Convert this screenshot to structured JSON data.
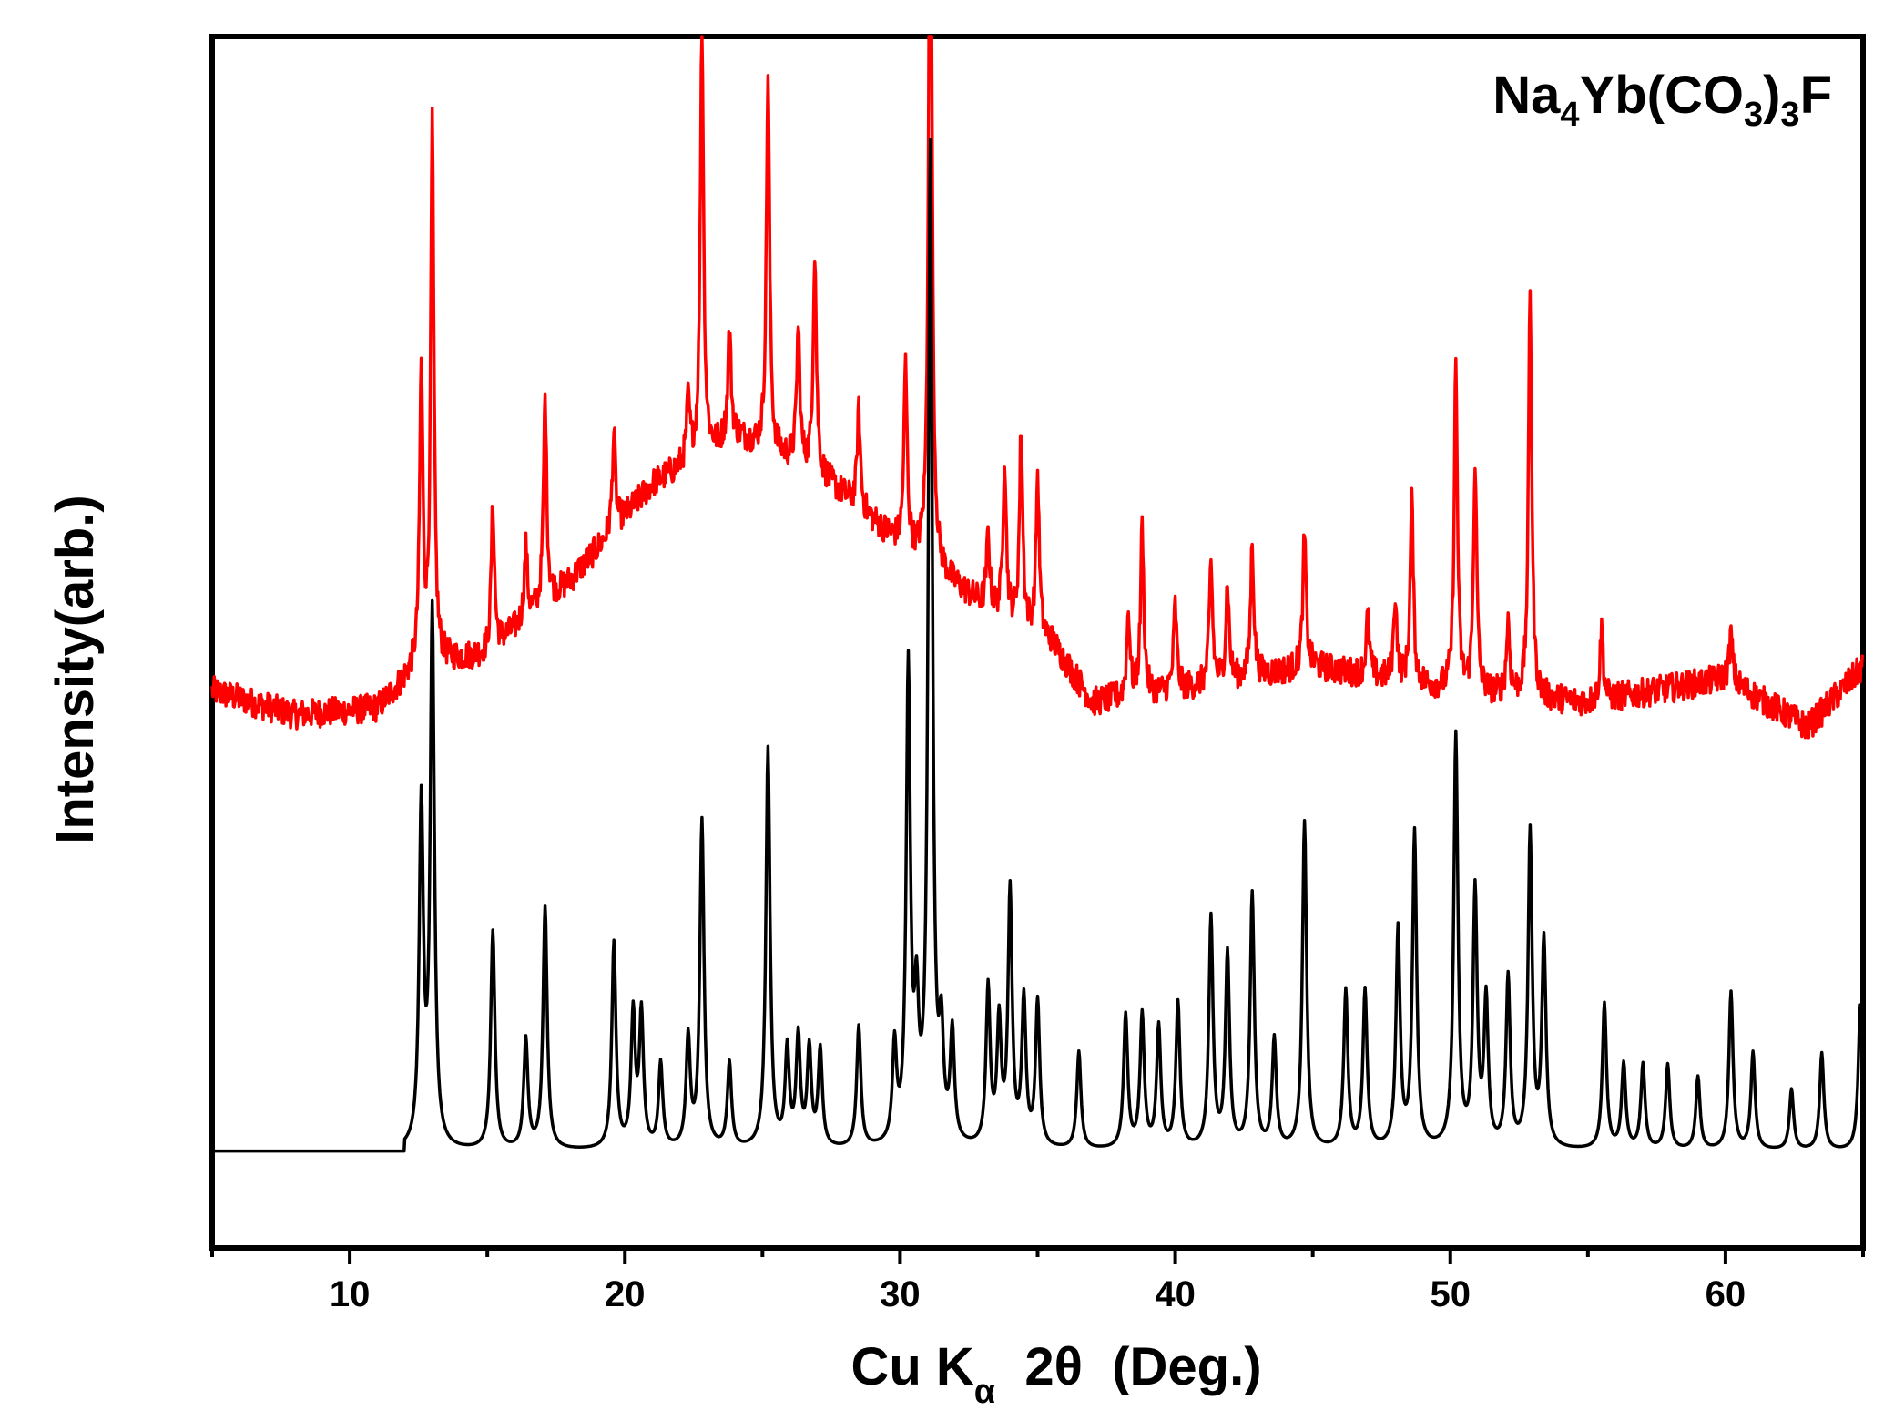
{
  "chart_data": {
    "type": "line",
    "annotation": {
      "parts": [
        {
          "text": "Na",
          "sub": false
        },
        {
          "text": "4",
          "sub": true
        },
        {
          "text": "Yb(CO",
          "sub": false
        },
        {
          "text": "3",
          "sub": true
        },
        {
          "text": ")",
          "sub": false
        },
        {
          "text": "3",
          "sub": true
        },
        {
          "text": "F",
          "sub": false
        }
      ]
    },
    "xlabel": {
      "prefix": "Cu K",
      "subscript": "α",
      "suffix": "  2θ  (Deg.)"
    },
    "ylabel": "Intensity(arb.)",
    "xlim": [
      5,
      65
    ],
    "ylim": [
      0,
      1
    ],
    "x_ticks": [
      10,
      20,
      30,
      40,
      50,
      60
    ],
    "y_ticks_labeled": false,
    "grid": false,
    "legend": "none",
    "series": [
      {
        "color": "#ff0000",
        "style": "experimental",
        "offset": 0.43,
        "background": [
          [
            5,
            0.03
          ],
          [
            8,
            0.01
          ],
          [
            11,
            0.015
          ],
          [
            12.5,
            0.05
          ],
          [
            15,
            0.06
          ],
          [
            18,
            0.12
          ],
          [
            21,
            0.2
          ],
          [
            24,
            0.24
          ],
          [
            27,
            0.21
          ],
          [
            30,
            0.15
          ],
          [
            33,
            0.1
          ],
          [
            35.5,
            0.07
          ],
          [
            37,
            0.02
          ],
          [
            40,
            0.03
          ],
          [
            45,
            0.05
          ],
          [
            50,
            0.03
          ],
          [
            55,
            0.02
          ],
          [
            60,
            0.04
          ],
          [
            63,
            0.0
          ],
          [
            65,
            0.05
          ]
        ],
        "peaks": [
          [
            12.6,
            0.24
          ],
          [
            13.0,
            0.44
          ],
          [
            15.2,
            0.12
          ],
          [
            16.4,
            0.06
          ],
          [
            17.1,
            0.17
          ],
          [
            19.6,
            0.08
          ],
          [
            22.3,
            0.05
          ],
          [
            22.8,
            0.36
          ],
          [
            23.8,
            0.09
          ],
          [
            25.2,
            0.31
          ],
          [
            26.3,
            0.11
          ],
          [
            26.9,
            0.18
          ],
          [
            28.5,
            0.08
          ],
          [
            30.2,
            0.15
          ],
          [
            31.1,
            0.69
          ],
          [
            33.2,
            0.06
          ],
          [
            33.8,
            0.13
          ],
          [
            34.4,
            0.16
          ],
          [
            35.0,
            0.13
          ],
          [
            38.3,
            0.07
          ],
          [
            38.8,
            0.14
          ],
          [
            40.0,
            0.07
          ],
          [
            41.3,
            0.1
          ],
          [
            41.9,
            0.08
          ],
          [
            42.8,
            0.11
          ],
          [
            44.7,
            0.11
          ],
          [
            47.0,
            0.05
          ],
          [
            48.0,
            0.07
          ],
          [
            48.6,
            0.15
          ],
          [
            50.2,
            0.27
          ],
          [
            50.9,
            0.19
          ],
          [
            52.1,
            0.06
          ],
          [
            52.9,
            0.34
          ],
          [
            55.5,
            0.06
          ],
          [
            60.2,
            0.04
          ]
        ],
        "noise": 0.012
      },
      {
        "color": "#000000",
        "style": "calculated",
        "offset": 0.08,
        "peaks": [
          [
            12.6,
            0.28
          ],
          [
            13.0,
            0.44
          ],
          [
            15.2,
            0.18
          ],
          [
            16.4,
            0.09
          ],
          [
            17.1,
            0.2
          ],
          [
            19.6,
            0.17
          ],
          [
            20.3,
            0.11
          ],
          [
            20.6,
            0.11
          ],
          [
            21.3,
            0.07
          ],
          [
            22.3,
            0.09
          ],
          [
            22.8,
            0.27
          ],
          [
            23.8,
            0.07
          ],
          [
            25.2,
            0.33
          ],
          [
            25.9,
            0.08
          ],
          [
            26.3,
            0.09
          ],
          [
            26.7,
            0.08
          ],
          [
            27.1,
            0.08
          ],
          [
            28.5,
            0.1
          ],
          [
            29.8,
            0.08
          ],
          [
            30.3,
            0.39
          ],
          [
            30.6,
            0.1
          ],
          [
            31.1,
            0.82
          ],
          [
            31.5,
            0.08
          ],
          [
            31.9,
            0.09
          ],
          [
            33.2,
            0.13
          ],
          [
            33.6,
            0.1
          ],
          [
            34.0,
            0.21
          ],
          [
            34.5,
            0.12
          ],
          [
            35.0,
            0.12
          ],
          [
            36.5,
            0.08
          ],
          [
            38.2,
            0.11
          ],
          [
            38.8,
            0.11
          ],
          [
            39.4,
            0.1
          ],
          [
            40.1,
            0.12
          ],
          [
            41.3,
            0.19
          ],
          [
            41.9,
            0.16
          ],
          [
            42.8,
            0.21
          ],
          [
            43.6,
            0.09
          ],
          [
            44.7,
            0.27
          ],
          [
            46.2,
            0.13
          ],
          [
            46.9,
            0.13
          ],
          [
            48.1,
            0.18
          ],
          [
            48.7,
            0.26
          ],
          [
            50.2,
            0.34
          ],
          [
            50.9,
            0.21
          ],
          [
            51.3,
            0.12
          ],
          [
            52.1,
            0.14
          ],
          [
            52.9,
            0.26
          ],
          [
            53.4,
            0.17
          ],
          [
            55.6,
            0.12
          ],
          [
            56.3,
            0.07
          ],
          [
            57.0,
            0.07
          ],
          [
            57.9,
            0.07
          ],
          [
            59.0,
            0.06
          ],
          [
            60.2,
            0.13
          ],
          [
            61.0,
            0.08
          ],
          [
            62.4,
            0.05
          ],
          [
            63.5,
            0.08
          ],
          [
            64.9,
            0.12
          ]
        ],
        "noise": 0
      }
    ]
  }
}
